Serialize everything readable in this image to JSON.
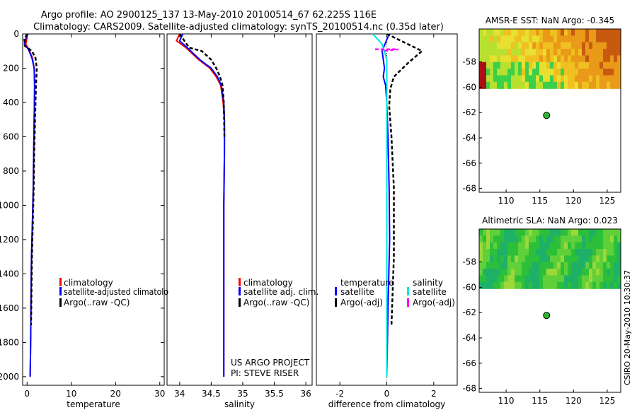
{
  "header": {
    "title": "Argo profile: AO 2900125_137 13-May-2010 20100514_67 62.225S 116E",
    "subtitle": "Climatology: CARS2009. Satellite-adjusted climatology: synTS_20100514.nc (0.35d later)"
  },
  "side_stamp": "CSIRO 20-May-2010 10:30:37",
  "colors": {
    "climatology": "#ff0000",
    "satellite": "#0000ff",
    "argo": "#000000",
    "satellite_sal": "#00e5e5",
    "argo_sal": "#ff00ff",
    "float_marker": "#2fb52f"
  },
  "chart_data": [
    {
      "type": "line",
      "id": "temperature-panel",
      "xlabel": "temperature",
      "xlim": [
        -1,
        31
      ],
      "ylim": [
        0,
        2050
      ],
      "y_inverted": true,
      "xticks": [
        0,
        10,
        20,
        30
      ],
      "yticks": [
        0,
        200,
        400,
        600,
        800,
        1000,
        1200,
        1400,
        1600,
        1800,
        2000
      ],
      "legend": [
        "climatology",
        "satellite-adjusted climatolo",
        "Argo(..raw -QC)"
      ],
      "series": [
        {
          "name": "climatology",
          "style": "solid",
          "color": "#ff0000",
          "x": [
            0.1,
            0.0,
            -0.3,
            0.4,
            1.2,
            1.6,
            1.7,
            1.6,
            1.5,
            1.4,
            1.2,
            1.0,
            0.9,
            0.8,
            0.7
          ],
          "y": [
            0,
            20,
            60,
            90,
            140,
            200,
            300,
            500,
            700,
            900,
            1100,
            1300,
            1500,
            1800,
            2000
          ]
        },
        {
          "name": "satellite-adjusted climatology",
          "style": "solid",
          "color": "#0000ff",
          "x": [
            0.2,
            -0.2,
            -0.6,
            0.3,
            1.1,
            1.6,
            1.7,
            1.6,
            1.5,
            1.4,
            1.2,
            1.0,
            0.9,
            0.8,
            0.7
          ],
          "y": [
            0,
            20,
            60,
            90,
            140,
            200,
            300,
            500,
            700,
            900,
            1100,
            1300,
            1500,
            1800,
            2000
          ]
        },
        {
          "name": "Argo(..raw -QC)",
          "style": "dashed",
          "color": "#000000",
          "x": [
            0.0,
            -0.6,
            -0.5,
            1.1,
            1.9,
            2.2,
            2.0,
            1.8,
            1.6,
            1.5,
            1.3,
            1.1,
            1.0,
            0.9
          ],
          "y": [
            0,
            30,
            70,
            100,
            140,
            200,
            300,
            500,
            700,
            900,
            1100,
            1300,
            1500,
            1700
          ]
        }
      ]
    },
    {
      "type": "line",
      "id": "salinity-panel",
      "xlabel": "salinity",
      "xlim": [
        33.8,
        36.1
      ],
      "ylim": [
        0,
        2050
      ],
      "y_inverted": true,
      "xticks": [
        34,
        34.5,
        35,
        35.5,
        36
      ],
      "legend": [
        "climatology",
        "satellite adj. clim.",
        "Argo(..raw -QC)"
      ],
      "annotation": [
        "US ARGO PROJECT",
        "PI: STEVE RISER"
      ],
      "series": [
        {
          "name": "climatology",
          "style": "solid",
          "color": "#ff0000",
          "x": [
            34.0,
            33.95,
            34.1,
            34.3,
            34.48,
            34.58,
            34.65,
            34.69,
            34.71,
            34.71,
            34.7,
            34.7,
            34.7
          ],
          "y": [
            0,
            40,
            80,
            150,
            200,
            250,
            300,
            400,
            500,
            700,
            1000,
            1500,
            2000
          ]
        },
        {
          "name": "satellite adj. clim.",
          "style": "solid",
          "color": "#0000ff",
          "x": [
            34.05,
            34.0,
            34.12,
            34.32,
            34.5,
            34.6,
            34.66,
            34.7,
            34.71,
            34.71,
            34.7,
            34.7,
            34.7
          ],
          "y": [
            0,
            40,
            80,
            150,
            200,
            250,
            300,
            400,
            500,
            700,
            1000,
            1500,
            2000
          ]
        },
        {
          "name": "Argo(..raw -QC)",
          "style": "dashed",
          "color": "#000000",
          "x": [
            34.0,
            34.15,
            34.35,
            34.5,
            34.58,
            34.64,
            34.68,
            34.7,
            34.71
          ],
          "y": [
            0,
            80,
            100,
            150,
            200,
            250,
            300,
            400,
            600
          ]
        }
      ]
    },
    {
      "type": "line",
      "id": "difference-panel",
      "xlabel": "difference from climatology",
      "xlim": [
        -3.0,
        3.0
      ],
      "ylim": [
        0,
        2050
      ],
      "y_inverted": true,
      "xticks": [
        -2,
        0,
        2
      ],
      "legend_groups": [
        {
          "title": "temperature",
          "items": [
            "satellite",
            "Argo(-adj)"
          ]
        },
        {
          "title": "salinity",
          "items": [
            "satellite",
            "Argo(-adj)"
          ]
        }
      ],
      "series": [
        {
          "name": "temperature satellite",
          "style": "solid",
          "color": "#0000ff",
          "x": [
            0.1,
            -0.2,
            -0.1,
            -0.15,
            -0.05,
            0.0,
            0.05,
            0.1,
            0.12,
            0.05,
            0.0
          ],
          "y": [
            0,
            100,
            200,
            250,
            300,
            400,
            600,
            900,
            1200,
            1600,
            2000
          ]
        },
        {
          "name": "temperature Argo(-adj)",
          "style": "dashed",
          "color": "#000000",
          "x": [
            0.0,
            0.9,
            1.5,
            0.9,
            0.3,
            0.15,
            0.1,
            0.2,
            0.3,
            0.3,
            0.2
          ],
          "y": [
            0,
            60,
            100,
            170,
            250,
            320,
            420,
            600,
            900,
            1300,
            1700
          ]
        },
        {
          "name": "salinity satellite",
          "style": "solid",
          "color": "#00e5e5",
          "x": [
            -0.6,
            -0.2,
            0.0,
            0.0,
            0.0,
            0.0
          ],
          "y": [
            0,
            60,
            150,
            400,
            1000,
            2000
          ]
        },
        {
          "name": "salinity Argo(-adj)",
          "style": "dashed",
          "color": "#ff00ff",
          "x": [
            -0.5,
            0.5,
            -0.2
          ],
          "y": [
            90,
            90,
            100
          ]
        }
      ]
    },
    {
      "type": "heatmap",
      "id": "amsr-sst-map",
      "title": "AMSR-E SST: NaN Argo: -0.345",
      "xlim": [
        106,
        127
      ],
      "ylim": [
        -68.3,
        -55.4
      ],
      "xticks": [
        110,
        115,
        120,
        125
      ],
      "yticks": [
        -58,
        -60,
        -62,
        -64,
        -66,
        -68
      ],
      "ytick_labels": [
        "-58",
        "-60",
        "-62",
        "-64",
        "-66",
        "-68"
      ],
      "data_extent_lat": [
        -60.1,
        -55.4
      ],
      "float_position": {
        "lon": 116,
        "lat": -62.225
      }
    },
    {
      "type": "heatmap",
      "id": "altimetric-sla-map",
      "title": "Altimetric SLA: NaN Argo: 0.023",
      "xlim": [
        106,
        127
      ],
      "ylim": [
        -68.3,
        -55.4
      ],
      "xticks": [
        110,
        115,
        120,
        125
      ],
      "yticks": [
        -58,
        -60,
        -62,
        -64,
        -66,
        -68
      ],
      "ytick_labels": [
        "-58",
        "-60",
        "-62",
        "-64",
        "-66",
        "-68"
      ],
      "data_extent_lat": [
        -60.1,
        -55.4
      ],
      "float_position": {
        "lon": 116,
        "lat": -62.225
      }
    }
  ]
}
